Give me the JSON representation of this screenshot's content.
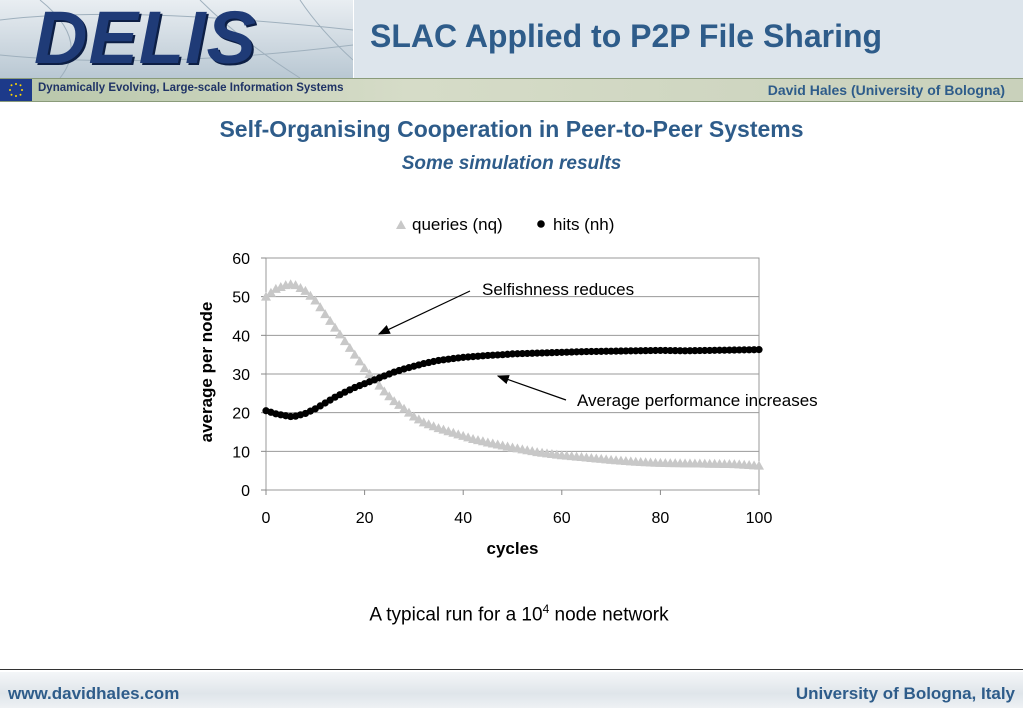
{
  "header": {
    "logo_text": "DELIS",
    "title": "SLAC Applied to P2P File Sharing",
    "tagline": "Dynamically Evolving, Large-scale Information Systems",
    "author": "David Hales (University of Bologna)"
  },
  "slide": {
    "title": "Self-Organising Cooperation in Peer-to-Peer Systems",
    "subtitle": "Some simulation results",
    "caption_prefix": "A typical run for a 10",
    "caption_sup": "4",
    "caption_suffix": " node network"
  },
  "footer": {
    "left": "www.davidhales.com",
    "right": "University of Bologna, Italy"
  },
  "colors": {
    "brand": "#2e5c8a",
    "queries_series": "#c8c8c8",
    "hits_series": "#000000"
  },
  "chart_data": {
    "type": "scatter",
    "xlabel": "cycles",
    "ylabel": "average per node",
    "xlim": [
      0,
      100
    ],
    "ylim": [
      0,
      60
    ],
    "xticks": [
      0,
      20,
      40,
      60,
      80,
      100
    ],
    "yticks": [
      0,
      10,
      20,
      30,
      40,
      50,
      60
    ],
    "grid": "horizontal",
    "legend_position": "top",
    "series": [
      {
        "name": "queries (nq)",
        "marker": "triangle",
        "color": "#c8c8c8",
        "x": [
          0,
          2,
          4,
          5,
          6,
          8,
          10,
          12,
          14,
          16,
          18,
          20,
          22,
          24,
          26,
          28,
          30,
          32,
          35,
          38,
          40,
          42,
          45,
          48,
          50,
          55,
          60,
          65,
          70,
          75,
          80,
          85,
          90,
          95,
          100
        ],
        "y": [
          50,
          52,
          53,
          53.2,
          53,
          51.5,
          49,
          45.5,
          42,
          38.5,
          35,
          31.5,
          28.5,
          25.5,
          23,
          21,
          19,
          17.5,
          16,
          14.8,
          14,
          13.2,
          12.3,
          11.5,
          11,
          9.8,
          9,
          8.4,
          7.8,
          7.3,
          7,
          6.9,
          6.8,
          6.7,
          6.3
        ]
      },
      {
        "name": "hits (nh)",
        "marker": "circle",
        "color": "#000000",
        "x": [
          0,
          2,
          4,
          5,
          6,
          8,
          10,
          12,
          14,
          16,
          18,
          20,
          22,
          24,
          26,
          28,
          30,
          32,
          35,
          38,
          40,
          42,
          45,
          48,
          50,
          55,
          60,
          65,
          70,
          75,
          80,
          85,
          90,
          95,
          100
        ],
        "y": [
          20.5,
          19.7,
          19.2,
          19,
          19.1,
          19.8,
          21,
          22.5,
          24,
          25.3,
          26.5,
          27.5,
          28.5,
          29.5,
          30.5,
          31.3,
          32,
          32.7,
          33.5,
          34,
          34.3,
          34.5,
          34.8,
          35,
          35.2,
          35.4,
          35.6,
          35.8,
          35.9,
          36,
          36.1,
          36,
          36.1,
          36.2,
          36.3
        ]
      }
    ],
    "annotations": [
      {
        "text": "Selfishness reduces"
      },
      {
        "text": "Average performance increases"
      }
    ]
  }
}
